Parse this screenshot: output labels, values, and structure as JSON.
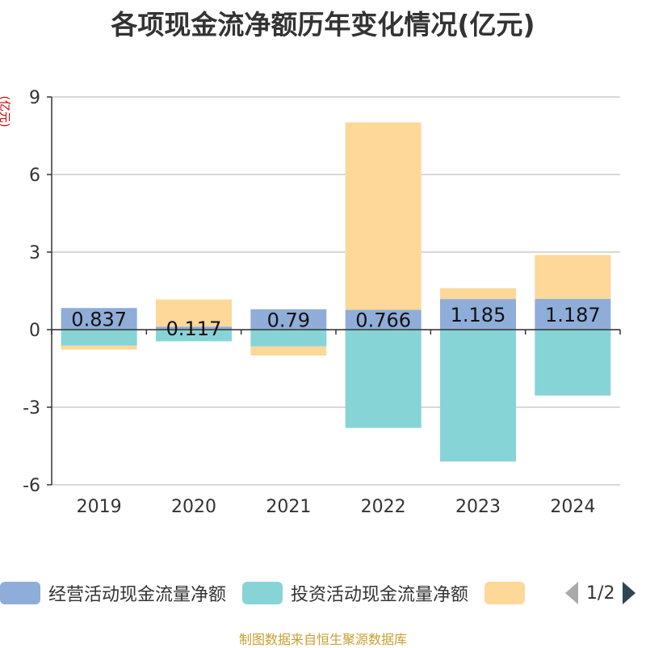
{
  "chart_data": {
    "type": "bar",
    "stacked": true,
    "title": "各项现金流净额历年变化情况(亿元)",
    "ylabel": "(亿元)",
    "ylim": [
      -6,
      9
    ],
    "yticks": [
      9,
      6,
      3,
      0,
      -3,
      -6
    ],
    "categories": [
      "2019",
      "2020",
      "2021",
      "2022",
      "2023",
      "2024"
    ],
    "series": [
      {
        "name": "经营活动现金流量净额",
        "color": "#8fadd9",
        "values": [
          0.837,
          0.117,
          0.79,
          0.766,
          1.185,
          1.187
        ],
        "labels": [
          "0.837",
          "0.117",
          "0.79",
          "0.766",
          "1.185",
          "1.187"
        ]
      },
      {
        "name": "投资活动现金流量净额",
        "color": "#87d4d6",
        "values": [
          -0.62,
          -0.45,
          -0.65,
          -3.8,
          -5.1,
          -2.55
        ]
      },
      {
        "name": "",
        "color": "#fdd898",
        "values": [
          -0.15,
          1.05,
          -0.35,
          7.25,
          0.42,
          1.7
        ]
      }
    ],
    "legend": {
      "position": "bottom-left",
      "page": "1/2"
    }
  },
  "footer": "制图数据来自恒生聚源数据库"
}
